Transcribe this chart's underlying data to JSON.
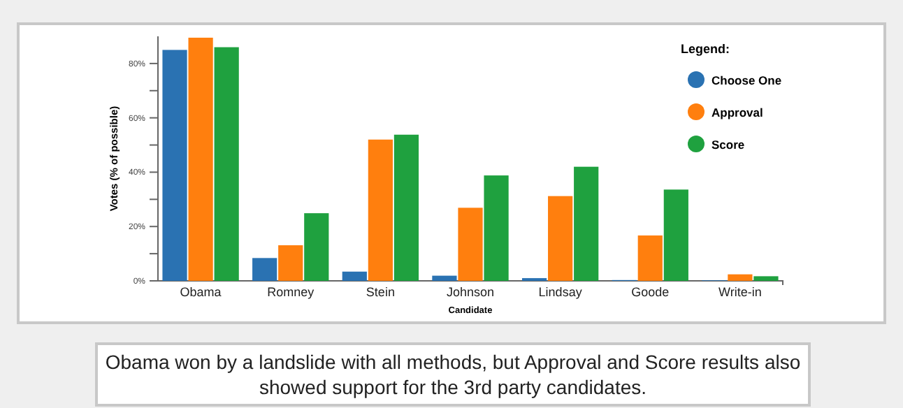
{
  "chart_data": {
    "type": "bar",
    "xlabel": "Candidate",
    "ylabel": "Votes (% of possible)",
    "legend_title": "Legend:",
    "categories": [
      "Obama",
      "Romney",
      "Stein",
      "Johnson",
      "Lindsay",
      "Goode",
      "Write-in"
    ],
    "series": [
      {
        "name": "Choose One",
        "color": "#2a72b2",
        "values": [
          85,
          8.4,
          3.4,
          1.9,
          1,
          0.3,
          0.2
        ]
      },
      {
        "name": "Approval",
        "color": "#ff7f0e",
        "values": [
          89.5,
          13.1,
          52,
          26.9,
          31.2,
          16.7,
          2.4
        ]
      },
      {
        "name": "Score",
        "color": "#1fa13f",
        "values": [
          86,
          24.9,
          53.8,
          38.8,
          42,
          33.6,
          1.7
        ]
      }
    ],
    "ylim": [
      0,
      90
    ],
    "yticks": [
      {
        "value": 0,
        "label": "0%"
      },
      {
        "value": 10,
        "label": null
      },
      {
        "value": 20,
        "label": "20%"
      },
      {
        "value": 30,
        "label": null
      },
      {
        "value": 40,
        "label": "40%"
      },
      {
        "value": 50,
        "label": null
      },
      {
        "value": 60,
        "label": "60%"
      },
      {
        "value": 70,
        "label": null
      },
      {
        "value": 80,
        "label": "80%"
      }
    ],
    "legend": "top right",
    "grid": false,
    "annotations": [
      "Obama won by a landslide with all methods, but Approval and Score results also showed support for the 3rd party candidates."
    ]
  }
}
